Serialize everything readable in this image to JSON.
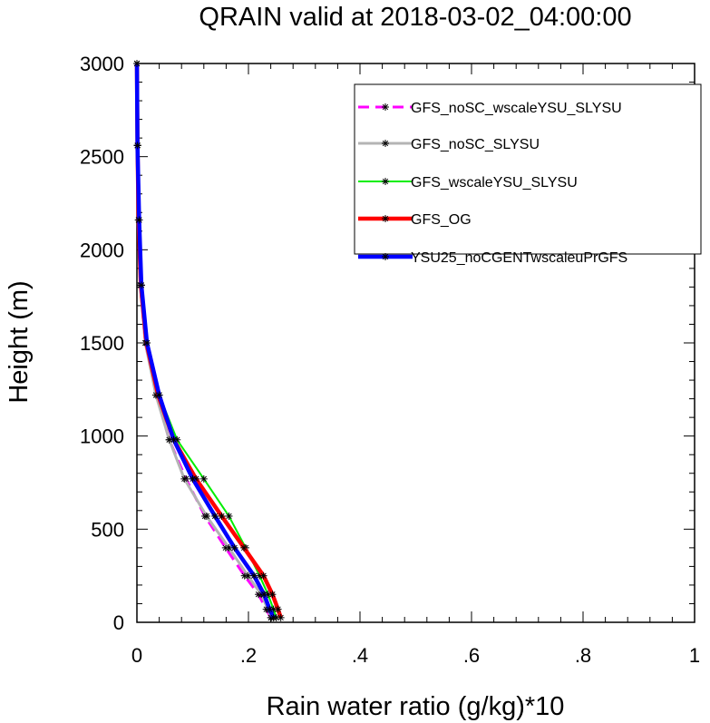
{
  "chart_data": {
    "type": "line",
    "title": "QRAIN valid at 2018-03-02_04:00:00",
    "xlabel": "Rain water ratio (g/kg)*10",
    "ylabel": "Height (m)",
    "xlim": [
      0,
      1
    ],
    "ylim": [
      0,
      3000
    ],
    "x_ticks": [
      0,
      0.2,
      0.4,
      0.6,
      0.8,
      1.0
    ],
    "x_tick_labels": [
      "0",
      ".2",
      ".4",
      ".6",
      ".8",
      "1"
    ],
    "y_ticks": [
      0,
      500,
      1000,
      1500,
      2000,
      2500,
      3000
    ],
    "y_tick_labels": [
      "0",
      "500",
      "1000",
      "1500",
      "2000",
      "2500",
      "3000"
    ],
    "grid": false,
    "legend_position": "top-right",
    "heights": [
      25,
      70,
      150,
      250,
      400,
      570,
      770,
      980,
      1220,
      1500,
      1810,
      2160,
      2560,
      3000
    ],
    "series": [
      {
        "name": "GFS_noSC_wscaleYSU_SLYSU",
        "color": "#ff00ff",
        "dash": "dashed",
        "values": [
          0.24,
          0.232,
          0.218,
          0.193,
          0.159,
          0.122,
          0.088,
          0.058,
          0.035,
          0.015,
          0.006,
          0.003,
          0.001,
          0.0
        ]
      },
      {
        "name": "GFS_noSC_SLYSU",
        "color": "#b4b4b4",
        "dash": "solid",
        "values": [
          0.241,
          0.235,
          0.223,
          0.199,
          0.165,
          0.125,
          0.085,
          0.058,
          0.034,
          0.015,
          0.006,
          0.003,
          0.001,
          0.0
        ]
      },
      {
        "name": "GFS_wscaleYSU_SLYSU",
        "color": "#00ee00",
        "dash": "solid",
        "values": [
          0.25,
          0.245,
          0.235,
          0.22,
          0.195,
          0.165,
          0.12,
          0.072,
          0.04,
          0.018,
          0.008,
          0.004,
          0.001,
          0.0
        ]
      },
      {
        "name": "GFS_OG",
        "color": "#ff0000",
        "dash": "solid",
        "values": [
          0.258,
          0.253,
          0.243,
          0.227,
          0.192,
          0.152,
          0.106,
          0.066,
          0.038,
          0.017,
          0.007,
          0.003,
          0.001,
          0.0
        ]
      },
      {
        "name": "YSU25_noCGENTwscaleuPrGFS",
        "color": "#0000ff",
        "dash": "solid",
        "values": [
          0.245,
          0.238,
          0.228,
          0.21,
          0.175,
          0.14,
          0.1,
          0.066,
          0.04,
          0.018,
          0.008,
          0.004,
          0.001,
          0.0
        ]
      }
    ]
  }
}
